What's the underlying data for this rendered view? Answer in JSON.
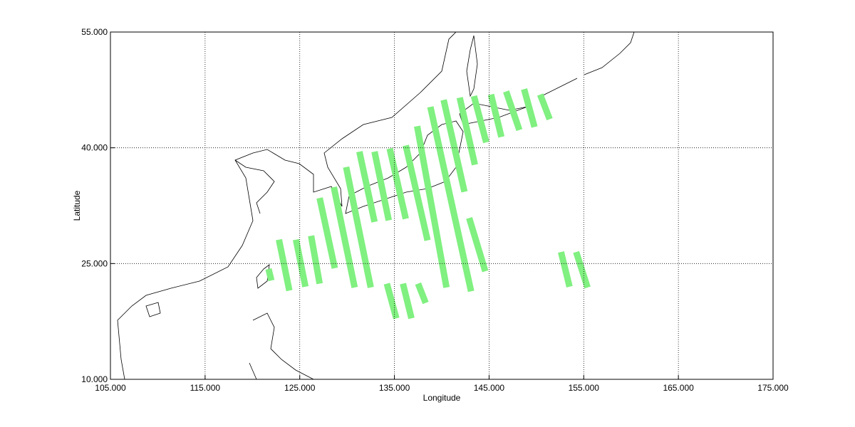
{
  "chart_data": {
    "type": "swath-map",
    "xlabel": "Longitude",
    "ylabel": "Latitude",
    "xlim": [
      105,
      175
    ],
    "ylim": [
      10,
      55
    ],
    "xticks": [
      {
        "value": 105,
        "label": "105.000"
      },
      {
        "value": 115,
        "label": "115.000"
      },
      {
        "value": 125,
        "label": "125.000"
      },
      {
        "value": 135,
        "label": "135.000"
      },
      {
        "value": 145,
        "label": "145.000"
      },
      {
        "value": 155,
        "label": "155.000"
      },
      {
        "value": 165,
        "label": "165.000"
      },
      {
        "value": 175,
        "label": "175.000"
      }
    ],
    "yticks": [
      {
        "value": 10,
        "label": "10.000"
      },
      {
        "value": 25,
        "label": "25.000"
      },
      {
        "value": 40,
        "label": "40.000"
      },
      {
        "value": 55,
        "label": "55.000"
      }
    ],
    "grid": true,
    "color": "#80f080",
    "swaths": [
      {
        "lon": [
          121.7,
          122.0
        ],
        "lat": [
          24.3,
          22.8
        ]
      },
      {
        "lon": [
          122.8,
          123.9
        ],
        "lat": [
          28.1,
          21.5
        ]
      },
      {
        "lon": [
          124.6,
          125.6
        ],
        "lat": [
          28.1,
          22.0
        ]
      },
      {
        "lon": [
          126.2,
          127.1
        ],
        "lat": [
          28.6,
          22.4
        ]
      },
      {
        "lon": [
          127.1,
          128.7
        ],
        "lat": [
          33.5,
          24.4
        ]
      },
      {
        "lon": [
          128.6,
          130.8
        ],
        "lat": [
          34.9,
          21.9
        ]
      },
      {
        "lon": [
          129.9,
          132.5
        ],
        "lat": [
          37.5,
          21.9
        ]
      },
      {
        "lon": [
          131.3,
          132.9
        ],
        "lat": [
          39.5,
          30.4
        ]
      },
      {
        "lon": [
          132.9,
          134.4
        ],
        "lat": [
          39.5,
          30.6
        ]
      },
      {
        "lon": [
          134.5,
          136.2
        ],
        "lat": [
          39.9,
          30.8
        ]
      },
      {
        "lon": [
          136.2,
          138.5
        ],
        "lat": [
          40.3,
          28.0
        ]
      },
      {
        "lon": [
          137.4,
          140.5
        ],
        "lat": [
          42.8,
          21.9
        ]
      },
      {
        "lon": [
          138.8,
          143.1
        ],
        "lat": [
          45.3,
          21.4
        ]
      },
      {
        "lon": [
          140.2,
          142.4
        ],
        "lat": [
          46.2,
          34.3
        ]
      },
      {
        "lon": [
          141.9,
          143.5
        ],
        "lat": [
          46.5,
          37.8
        ]
      },
      {
        "lon": [
          143.4,
          144.7
        ],
        "lat": [
          46.7,
          40.7
        ]
      },
      {
        "lon": [
          145.2,
          146.3
        ],
        "lat": [
          46.9,
          41.4
        ]
      },
      {
        "lon": [
          146.8,
          148.2
        ],
        "lat": [
          47.3,
          42.3
        ]
      },
      {
        "lon": [
          148.7,
          149.8
        ],
        "lat": [
          47.6,
          42.7
        ]
      },
      {
        "lon": [
          150.4,
          151.4
        ],
        "lat": [
          46.9,
          43.7
        ]
      },
      {
        "lon": [
          142.9,
          144.6
        ],
        "lat": [
          30.9,
          24.0
        ]
      },
      {
        "lon": [
          134.2,
          135.2
        ],
        "lat": [
          22.4,
          17.9
        ]
      },
      {
        "lon": [
          135.9,
          136.8
        ],
        "lat": [
          22.4,
          17.9
        ]
      },
      {
        "lon": [
          137.5,
          138.3
        ],
        "lat": [
          22.4,
          19.9
        ]
      },
      {
        "lon": [
          152.6,
          153.5
        ],
        "lat": [
          26.5,
          22.0
        ]
      },
      {
        "lon": [
          154.2,
          155.4
        ],
        "lat": [
          26.5,
          21.9
        ]
      }
    ]
  }
}
